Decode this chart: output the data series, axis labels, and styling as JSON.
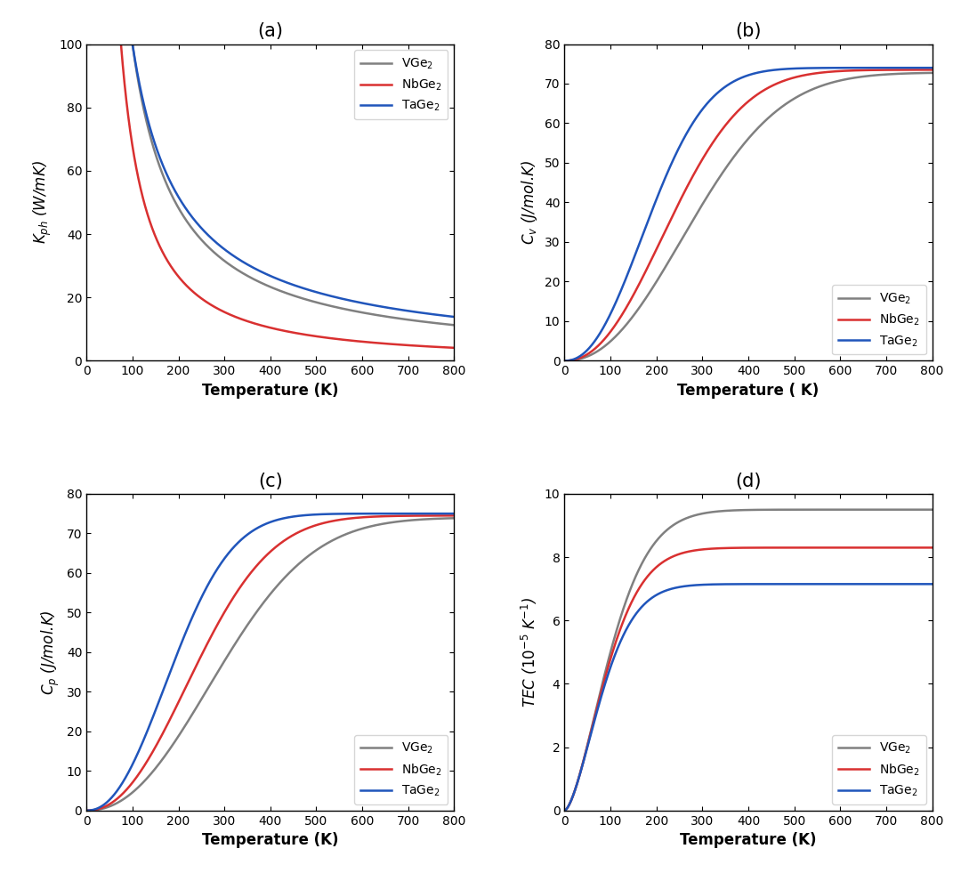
{
  "colors": {
    "VGe2": "#808080",
    "NbGe2": "#d93030",
    "TaGe2": "#2055bb"
  },
  "subplot_titles": [
    "(a)",
    "(b)",
    "(c)",
    "(d)"
  ],
  "panel_a": {
    "ylabel": "$K_{ph}$ (W/mK)",
    "xlabel": "Temperature (K)",
    "xlim": [
      0,
      800
    ],
    "ylim": [
      0,
      100
    ],
    "xticks": [
      0,
      100,
      200,
      300,
      400,
      500,
      600,
      700,
      800
    ],
    "yticks": [
      0,
      20,
      40,
      60,
      80,
      100
    ],
    "VGe2": {
      "Tref": 100,
      "A": 100.0,
      "n": 1.05
    },
    "NbGe2": {
      "Tref": 75,
      "A": 100.0,
      "n": 1.35
    },
    "TaGe2": {
      "Tref": 100,
      "A": 100.0,
      "n": 0.95
    }
  },
  "panel_b": {
    "ylabel": "$C_v$ (J/mol.K)",
    "xlabel": "Temperature ( K)",
    "xlim": [
      0,
      800
    ],
    "ylim": [
      0,
      80
    ],
    "xticks": [
      0,
      100,
      200,
      300,
      400,
      500,
      600,
      700,
      800
    ],
    "yticks": [
      0,
      10,
      20,
      30,
      40,
      50,
      60,
      70,
      80
    ],
    "VGe2": {
      "scale": 2.1,
      "exp_scale": 470,
      "power": 2.2,
      "max_val": 72.8
    },
    "NbGe2": {
      "scale": 2.1,
      "exp_scale": 390,
      "power": 2.2,
      "max_val": 73.5
    },
    "TaGe2": {
      "scale": 2.1,
      "exp_scale": 310,
      "power": 2.2,
      "max_val": 74.0
    }
  },
  "panel_c": {
    "ylabel": "$C_p$ (J/mol.K)",
    "xlabel": "Temperature (K)",
    "xlim": [
      0,
      800
    ],
    "ylim": [
      0,
      80
    ],
    "xticks": [
      0,
      100,
      200,
      300,
      400,
      500,
      600,
      700,
      800
    ],
    "yticks": [
      0,
      10,
      20,
      30,
      40,
      50,
      60,
      70,
      80
    ],
    "VGe2": {
      "scale": 2.1,
      "exp_scale": 490,
      "power": 2.2,
      "max_val": 74.0
    },
    "NbGe2": {
      "scale": 2.1,
      "exp_scale": 400,
      "power": 2.2,
      "max_val": 74.5
    },
    "TaGe2": {
      "scale": 2.1,
      "exp_scale": 315,
      "power": 2.2,
      "max_val": 75.0
    }
  },
  "panel_d": {
    "ylabel": "TEC ($10^{-5}$ K$^{-1}$)",
    "xlabel": "Temperature (K)",
    "xlim": [
      0,
      800
    ],
    "ylim": [
      0,
      10
    ],
    "xticks": [
      0,
      100,
      200,
      300,
      400,
      500,
      600,
      700,
      800
    ],
    "yticks": [
      0,
      2,
      4,
      6,
      8,
      10
    ],
    "VGe2": {
      "TEC_max": 9.5,
      "theta": 120,
      "power": 1.6
    },
    "NbGe2": {
      "TEC_max": 8.3,
      "theta": 110,
      "power": 1.6
    },
    "TaGe2": {
      "TEC_max": 7.15,
      "theta": 100,
      "power": 1.6
    }
  }
}
